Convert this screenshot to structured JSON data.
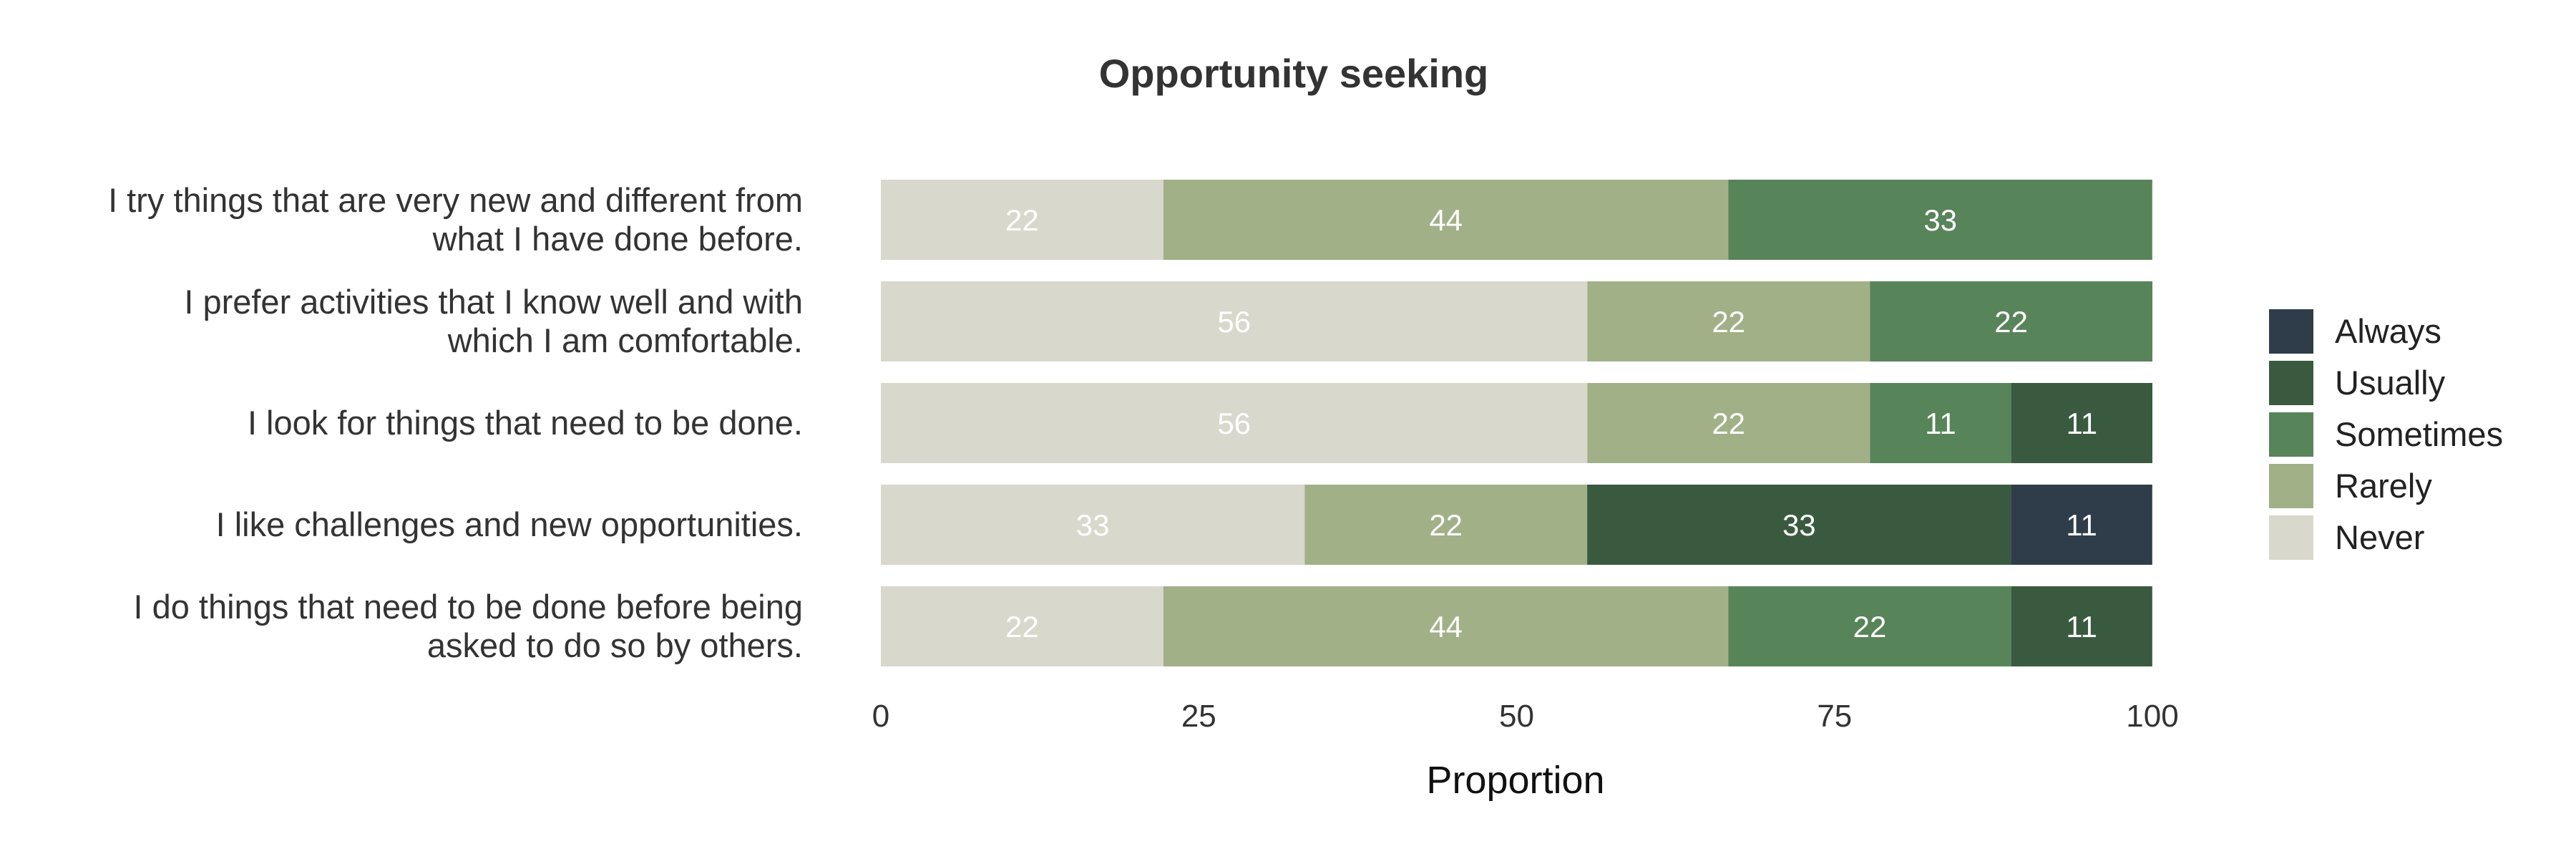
{
  "chart_data": {
    "type": "bar",
    "orientation": "horizontal",
    "stacked": true,
    "title": "Opportunity seeking",
    "xlabel": "Proportion",
    "ylabel": "",
    "xlim": [
      0,
      100
    ],
    "xticks": [
      "0",
      "25",
      "50",
      "75",
      "100"
    ],
    "grid": false,
    "legend_position": "right",
    "categories": [
      [
        "I try things that are very new and different from",
        "what I have done before."
      ],
      [
        "I prefer activities that I know well and with",
        "which I am comfortable."
      ],
      [
        "I look for things that need to be done."
      ],
      [
        "I like challenges and new opportunities."
      ],
      [
        "I do things that need to be done before being",
        "asked to do so by others."
      ]
    ],
    "series": [
      {
        "name": "Never",
        "color": "#d9d8cd",
        "values": [
          22.22,
          55.56,
          55.56,
          33.33,
          22.22
        ],
        "labels": [
          "22",
          "56",
          "56",
          "33",
          "22"
        ]
      },
      {
        "name": "Rarely",
        "color": "#a2b088",
        "values": [
          44.44,
          22.22,
          22.22,
          22.22,
          44.44
        ],
        "labels": [
          "44",
          "22",
          "22",
          "22",
          "44"
        ]
      },
      {
        "name": "Sometimes",
        "color": "#58845a",
        "values": [
          33.33,
          22.22,
          11.11,
          0,
          22.22
        ],
        "labels": [
          "33",
          "22",
          "11",
          "",
          "22"
        ]
      },
      {
        "name": "Usually",
        "color": "#3a5a40",
        "values": [
          0,
          0,
          11.11,
          33.33,
          11.11
        ],
        "labels": [
          "",
          "",
          "11",
          "33",
          "11"
        ]
      },
      {
        "name": "Always",
        "color": "#2e3d49",
        "values": [
          0,
          0,
          0,
          11.11,
          0
        ],
        "labels": [
          "",
          "",
          "",
          "11",
          ""
        ]
      }
    ],
    "legend_order": [
      "Always",
      "Usually",
      "Sometimes",
      "Rarely",
      "Never"
    ]
  }
}
